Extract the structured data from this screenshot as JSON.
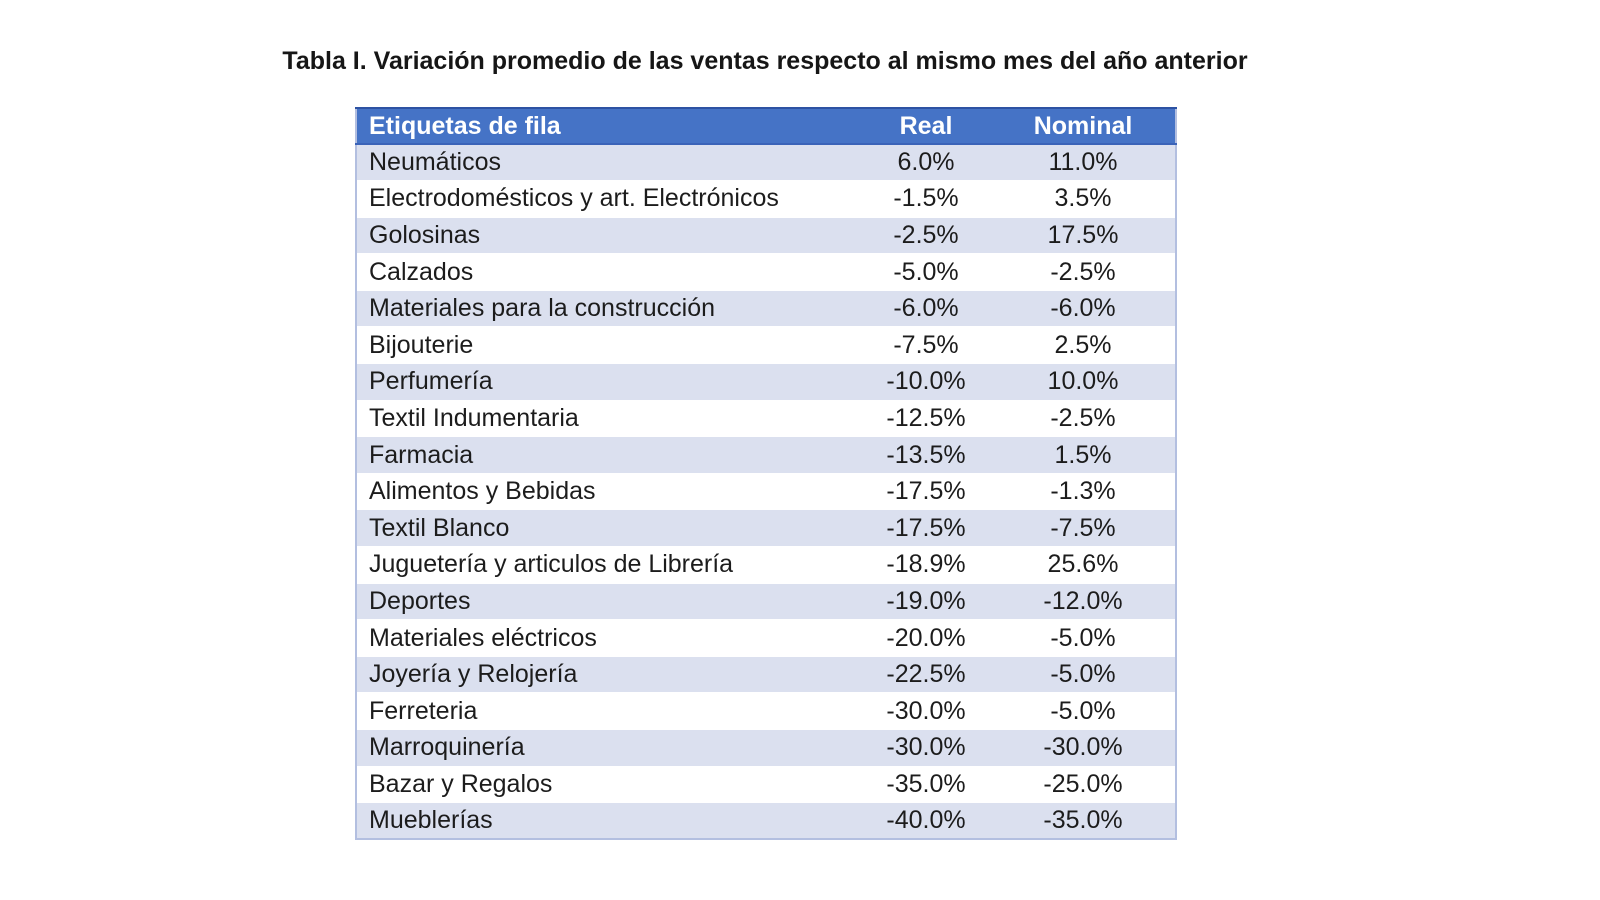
{
  "title": "Tabla I. Variación promedio de las ventas respecto al mismo mes del año anterior",
  "table": {
    "columns": [
      "Etiquetas de fila",
      "Real",
      "Nominal"
    ],
    "rows": [
      [
        "Neumáticos",
        "6.0%",
        "11.0%"
      ],
      [
        "Electrodomésticos y art. Electrónicos",
        "-1.5%",
        "3.5%"
      ],
      [
        "Golosinas",
        "-2.5%",
        "17.5%"
      ],
      [
        "Calzados",
        "-5.0%",
        "-2.5%"
      ],
      [
        "Materiales para la construcción",
        "-6.0%",
        "-6.0%"
      ],
      [
        "Bijouterie",
        "-7.5%",
        "2.5%"
      ],
      [
        "Perfumería",
        "-10.0%",
        "10.0%"
      ],
      [
        "Textil Indumentaria",
        "-12.5%",
        "-2.5%"
      ],
      [
        "Farmacia",
        "-13.5%",
        "1.5%"
      ],
      [
        "Alimentos y Bebidas",
        "-17.5%",
        "-1.3%"
      ],
      [
        "Textil Blanco",
        "-17.5%",
        "-7.5%"
      ],
      [
        "Juguetería y articulos de Librería",
        "-18.9%",
        "25.6%"
      ],
      [
        "Deportes",
        "-19.0%",
        "-12.0%"
      ],
      [
        "Materiales eléctricos",
        "-20.0%",
        "-5.0%"
      ],
      [
        "Joyería y Relojería",
        "-22.5%",
        "-5.0%"
      ],
      [
        "Ferreteria",
        "-30.0%",
        "-5.0%"
      ],
      [
        "Marroquinería",
        "-30.0%",
        "-30.0%"
      ],
      [
        "Bazar y Regalos",
        "-35.0%",
        "-25.0%"
      ],
      [
        "Mueblerías",
        "-40.0%",
        "-35.0%"
      ]
    ]
  },
  "chart_data": {
    "type": "table",
    "title": "Tabla I. Variación promedio de las ventas respecto al mismo mes del año anterior",
    "columns": [
      "Etiquetas de fila",
      "Real",
      "Nominal"
    ],
    "categories": [
      "Neumáticos",
      "Electrodomésticos y art. Electrónicos",
      "Golosinas",
      "Calzados",
      "Materiales para la construcción",
      "Bijouterie",
      "Perfumería",
      "Textil Indumentaria",
      "Farmacia",
      "Alimentos y Bebidas",
      "Textil Blanco",
      "Juguetería y articulos de Librería",
      "Deportes",
      "Materiales eléctricos",
      "Joyería y Relojería",
      "Ferreteria",
      "Marroquinería",
      "Bazar y Regalos",
      "Mueblerías"
    ],
    "series": [
      {
        "name": "Real",
        "values": [
          6.0,
          -1.5,
          -2.5,
          -5.0,
          -6.0,
          -7.5,
          -10.0,
          -12.5,
          -13.5,
          -17.5,
          -17.5,
          -18.9,
          -19.0,
          -20.0,
          -22.5,
          -30.0,
          -30.0,
          -35.0,
          -40.0
        ],
        "unit": "%"
      },
      {
        "name": "Nominal",
        "values": [
          11.0,
          3.5,
          17.5,
          -2.5,
          -6.0,
          2.5,
          10.0,
          -2.5,
          1.5,
          -1.3,
          -7.5,
          25.6,
          -12.0,
          -5.0,
          -5.0,
          -5.0,
          -30.0,
          -25.0,
          -35.0
        ],
        "unit": "%"
      }
    ]
  },
  "colors": {
    "header_bg": "#4573c6",
    "header_text": "#ffffff",
    "header_top_border": "#2d52a3",
    "band_row_bg": "#dbe0ef",
    "plain_row_bg": "#ffffff",
    "outer_border": "#b3bfe0",
    "body_text": "#1c1c1c",
    "page_bg": "#ffffff"
  }
}
